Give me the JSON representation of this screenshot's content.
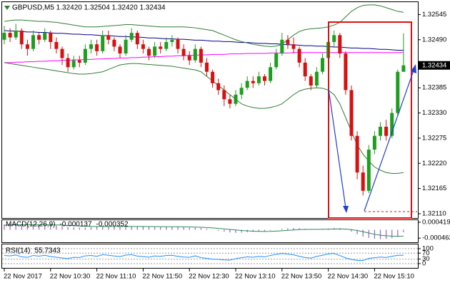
{
  "chart_data": [
    {
      "type": "candlestick",
      "title": "GBPUSD,M5  1.32420 1.32504 1.32420 1.32434",
      "categories": [
        "22 Nov 2017",
        null,
        null,
        null,
        null,
        null,
        null,
        null,
        "22 Nov 10:30",
        null,
        null,
        null,
        null,
        null,
        null,
        null,
        "22 Nov 11:10",
        null,
        null,
        null,
        null,
        null,
        null,
        null,
        "22 Nov 11:50",
        null,
        null,
        null,
        null,
        null,
        null,
        null,
        "22 Nov 12:30",
        null,
        null,
        null,
        null,
        null,
        null,
        null,
        "22 Nov 13:10",
        null,
        null,
        null,
        null,
        null,
        null,
        null,
        "22 Nov 13:50",
        null,
        null,
        null,
        null,
        null,
        null,
        null,
        "22 Nov 14:30",
        null,
        null,
        null,
        null,
        null,
        null,
        null,
        "22 Nov 15:10",
        null,
        null,
        null,
        null,
        null
      ],
      "open": [
        1.3249,
        1.32505,
        1.32495,
        1.3251,
        1.3248,
        1.3247,
        1.325,
        1.3249,
        1.32505,
        1.32485,
        1.3247,
        1.3245,
        1.3243,
        1.32445,
        1.3244,
        1.3247,
        1.3248,
        1.32465,
        1.325,
        1.3249,
        1.32475,
        1.3246,
        1.3249,
        1.32505,
        1.3248,
        1.3247,
        1.32455,
        1.32475,
        1.3247,
        1.32485,
        1.3249,
        1.3247,
        1.32455,
        1.32445,
        1.3247,
        1.3244,
        1.3242,
        1.32395,
        1.3238,
        1.3236,
        1.3235,
        1.3237,
        1.32385,
        1.324,
        1.32395,
        1.3241,
        1.324,
        1.3243,
        1.3246,
        1.3249,
        1.3248,
        1.3247,
        1.3244,
        1.3241,
        1.3239,
        1.3242,
        1.3245,
        1.32485,
        1.325,
        1.3246,
        1.3238,
        1.3228,
        1.322,
        1.3216,
        1.3225,
        1.3228,
        1.323,
        1.3228,
        1.3233,
        1.3242
      ],
      "high": [
        1.3252,
        1.32515,
        1.32525,
        1.32515,
        1.3249,
        1.3251,
        1.32505,
        1.32515,
        1.3251,
        1.32495,
        1.32475,
        1.3246,
        1.32455,
        1.32455,
        1.3248,
        1.3249,
        1.3249,
        1.3251,
        1.3251,
        1.32495,
        1.3248,
        1.325,
        1.32515,
        1.3251,
        1.3249,
        1.32475,
        1.32485,
        1.32485,
        1.32495,
        1.325,
        1.32495,
        1.3248,
        1.32465,
        1.3248,
        1.32475,
        1.3245,
        1.32425,
        1.32405,
        1.3239,
        1.3237,
        1.3238,
        1.32395,
        1.3241,
        1.3241,
        1.3242,
        1.32415,
        1.3244,
        1.3247,
        1.32505,
        1.325,
        1.32495,
        1.32475,
        1.3245,
        1.32415,
        1.3243,
        1.3246,
        1.32495,
        1.3251,
        1.32505,
        1.32465,
        1.3239,
        1.3229,
        1.32215,
        1.3226,
        1.3229,
        1.3231,
        1.32315,
        1.3234,
        1.32425,
        1.32504
      ],
      "low": [
        1.3248,
        1.32485,
        1.3249,
        1.3247,
        1.32455,
        1.32465,
        1.3248,
        1.32485,
        1.3247,
        1.3246,
        1.32435,
        1.3242,
        1.32425,
        1.3243,
        1.32435,
        1.3246,
        1.32455,
        1.3246,
        1.3248,
        1.32465,
        1.3245,
        1.32455,
        1.32485,
        1.3247,
        1.3246,
        1.32445,
        1.3245,
        1.3246,
        1.32465,
        1.32475,
        1.3246,
        1.32445,
        1.32435,
        1.3244,
        1.3243,
        1.3241,
        1.32385,
        1.3237,
        1.32345,
        1.3234,
        1.32345,
        1.3236,
        1.3238,
        1.32385,
        1.3239,
        1.3239,
        1.32395,
        1.32425,
        1.32455,
        1.3247,
        1.3246,
        1.3243,
        1.324,
        1.3238,
        1.32385,
        1.32415,
        1.32445,
        1.32475,
        1.3245,
        1.3237,
        1.3227,
        1.32185,
        1.3215,
        1.32155,
        1.3224,
        1.3227,
        1.3227,
        1.32275,
        1.32325,
        1.3242
      ],
      "close": [
        1.32505,
        1.32495,
        1.3251,
        1.3248,
        1.3247,
        1.325,
        1.3249,
        1.32505,
        1.32485,
        1.3247,
        1.3245,
        1.3243,
        1.32445,
        1.3244,
        1.3247,
        1.3248,
        1.32465,
        1.325,
        1.3249,
        1.32475,
        1.3246,
        1.3249,
        1.32505,
        1.3248,
        1.3247,
        1.32455,
        1.32475,
        1.3247,
        1.32485,
        1.3249,
        1.3247,
        1.32455,
        1.32445,
        1.3247,
        1.3244,
        1.3242,
        1.32395,
        1.3238,
        1.3236,
        1.3235,
        1.3237,
        1.32385,
        1.324,
        1.32395,
        1.3241,
        1.324,
        1.3243,
        1.3246,
        1.3249,
        1.3248,
        1.3247,
        1.3244,
        1.3241,
        1.3239,
        1.3242,
        1.3245,
        1.32485,
        1.325,
        1.3246,
        1.3238,
        1.3228,
        1.322,
        1.3216,
        1.3225,
        1.3228,
        1.323,
        1.3228,
        1.3233,
        1.3242,
        1.32434
      ],
      "up_color": "#1e9e1e",
      "down_color": "#d81010",
      "overlays": [
        {
          "color": "#00008b",
          "values": [
            1.3251,
            1.32509,
            1.32509,
            1.32508,
            1.32507,
            1.32507,
            1.32506,
            1.32506,
            1.32505,
            1.32504,
            1.32504,
            1.32503,
            1.32502,
            1.32502,
            1.32501,
            1.32501,
            1.325,
            1.32499,
            1.32499,
            1.32498,
            1.32497,
            1.32497,
            1.32496,
            1.32496,
            1.32495,
            1.32494,
            1.32494,
            1.32493,
            1.32492,
            1.32492,
            1.32491,
            1.32491,
            1.3249,
            1.32489,
            1.32489,
            1.32488,
            1.32487,
            1.32487,
            1.32486,
            1.32486,
            1.32485,
            1.32484,
            1.32484,
            1.32483,
            1.32482,
            1.32482,
            1.32481,
            1.32481,
            1.3248,
            1.32479,
            1.32479,
            1.32478,
            1.32477,
            1.32477,
            1.32476,
            1.32476,
            1.32475,
            1.32474,
            1.32474,
            1.32473,
            1.32472,
            1.32472,
            1.32471,
            1.32471,
            1.3247,
            1.32469,
            1.32469,
            1.32468,
            1.32467,
            1.32467
          ]
        },
        {
          "color": "#ff00ff",
          "values": [
            1.3244,
            1.3244,
            1.32441,
            1.32441,
            1.32442,
            1.32442,
            1.32443,
            1.32443,
            1.32444,
            1.32444,
            1.32445,
            1.32445,
            1.32446,
            1.32446,
            1.32447,
            1.32447,
            1.32448,
            1.32448,
            1.32449,
            1.32449,
            1.3245,
            1.3245,
            1.32451,
            1.32451,
            1.32452,
            1.32452,
            1.32453,
            1.32453,
            1.32454,
            1.32454,
            1.32455,
            1.32455,
            1.32456,
            1.32456,
            1.32457,
            1.32457,
            1.32458,
            1.32458,
            1.32458,
            1.32459,
            1.32459,
            1.32459,
            1.3246,
            1.3246,
            1.3246,
            1.3246,
            1.32461,
            1.32461,
            1.32461,
            1.32461,
            1.32462,
            1.32462,
            1.32462,
            1.32462,
            1.32462,
            1.32462,
            1.32462,
            1.32462,
            1.32462,
            1.32462,
            1.32462,
            1.32462,
            1.32462,
            1.32462,
            1.32462,
            1.32462,
            1.32462,
            1.32462,
            1.32462,
            1.32462
          ]
        },
        {
          "color": "#2e7d32",
          "values": [
            1.3253,
            1.32532,
            1.32533,
            1.32533,
            1.32532,
            1.32531,
            1.3253,
            1.3253,
            1.32529,
            1.32528,
            1.32526,
            1.32524,
            1.32522,
            1.3252,
            1.32518,
            1.32518,
            1.32518,
            1.32519,
            1.3252,
            1.32521,
            1.32522,
            1.32523,
            1.32523,
            1.32522,
            1.32521,
            1.3252,
            1.32519,
            1.32518,
            1.32518,
            1.32518,
            1.32518,
            1.32518,
            1.32517,
            1.32516,
            1.32514,
            1.32512,
            1.3251,
            1.32505,
            1.325,
            1.32495,
            1.3249,
            1.32486,
            1.32483,
            1.3248,
            1.32478,
            1.32476,
            1.32475,
            1.32476,
            1.3248,
            1.3249,
            1.325,
            1.32508,
            1.32512,
            1.32514,
            1.32515,
            1.32516,
            1.32518,
            1.32522,
            1.32528,
            1.3254,
            1.32552,
            1.3256,
            1.32565,
            1.32566,
            1.32566,
            1.32564,
            1.3256,
            1.32556,
            1.32552,
            1.3255
          ]
        },
        {
          "color": "#2e7d32",
          "values": [
            1.3244,
            1.32438,
            1.32436,
            1.32434,
            1.32432,
            1.3243,
            1.32428,
            1.32426,
            1.32424,
            1.32422,
            1.3242,
            1.32418,
            1.32416,
            1.32415,
            1.32415,
            1.32416,
            1.32418,
            1.3242,
            1.32425,
            1.3243,
            1.32435,
            1.32437,
            1.32438,
            1.32438,
            1.32437,
            1.32436,
            1.32435,
            1.32434,
            1.32433,
            1.32432,
            1.3243,
            1.32428,
            1.32426,
            1.32424,
            1.3242,
            1.3241,
            1.324,
            1.3239,
            1.3238,
            1.3237,
            1.3236,
            1.3235,
            1.32345,
            1.32342,
            1.3234,
            1.3234,
            1.32342,
            1.32345,
            1.3235,
            1.3236,
            1.3237,
            1.32378,
            1.32382,
            1.32384,
            1.32385,
            1.32384,
            1.3238,
            1.3237,
            1.3235,
            1.3232,
            1.3229,
            1.3226,
            1.3224,
            1.32225,
            1.32212,
            1.32205,
            1.322,
            1.32198,
            1.32198,
            1.322
          ]
        }
      ],
      "ylim": [
        1.32099,
        1.32569
      ],
      "yticks": [
        1.32545,
        {
          "value": 1.3249,
          "label": "1.32490"
        },
        1.32385,
        {
          "value": 1.3233,
          "label": "1.32330"
        },
        1.32275,
        {
          "value": 1.3222,
          "label": "1.32220"
        },
        1.32165,
        {
          "value": 1.3211,
          "label": "1.32110"
        }
      ]
    },
    {
      "type": "macd",
      "title": "MACD(12,26,9)",
      "series": [
        {
          "color": "#9b6fd0",
          "values": [
            0.0003,
            0.00032,
            0.00033,
            0.00032,
            0.0003,
            0.00028,
            0.00027,
            0.00026,
            0.00025,
            0.00023,
            0.0002,
            0.00016,
            0.00013,
            0.00012,
            0.00013,
            0.00015,
            0.00017,
            0.00019,
            0.0002,
            0.00019,
            0.00018,
            0.00017,
            0.00018,
            0.00019,
            0.00018,
            0.00016,
            0.00015,
            0.00015,
            0.00016,
            0.00017,
            0.00016,
            0.00014,
            0.00012,
            0.00012,
            0.0001,
            6e-05,
            1e-05,
            -5e-05,
            -0.00011,
            -0.00015,
            -0.00017,
            -0.00016,
            -0.00014,
            -0.00012,
            -0.0001,
            -8e-05,
            -4e-05,
            1e-05,
            6e-05,
            9e-05,
            0.0001,
            9e-05,
            6e-05,
            3e-05,
            2e-05,
            4e-05,
            7e-05,
            9e-05,
            8e-05,
            1e-05,
            -0.0001,
            -0.00025,
            -0.00038,
            -0.00045,
            -0.0005,
            -0.00052,
            -0.0005,
            -0.00047,
            -0.0004,
            -0.000137
          ]
        },
        {
          "color": "#2e8b57",
          "values": [
            0.00025,
            0.00026,
            0.00027,
            0.00028,
            0.000285,
            0.000285,
            0.00028,
            0.000275,
            0.00027,
            0.000265,
            0.000255,
            0.00024,
            0.000225,
            0.00021,
            0.0002,
            0.00019,
            0.000185,
            0.000185,
            0.000185,
            0.000185,
            0.000185,
            0.000183,
            0.000182,
            0.000182,
            0.000182,
            0.00018,
            0.000176,
            0.000172,
            0.00017,
            0.000168,
            0.000166,
            0.000162,
            0.000156,
            0.00015,
            0.00014,
            0.000125,
            0.000105,
            8e-05,
            5e-05,
            2e-05,
            -1e-05,
            -4e-05,
            -6e-05,
            -8e-05,
            -9e-05,
            -9.5e-05,
            -9e-05,
            -7.5e-05,
            -5.5e-05,
            -3e-05,
            -1e-05,
            1e-05,
            2e-05,
            2.5e-05,
            2.5e-05,
            2.8e-05,
            3.5e-05,
            4.5e-05,
            5e-05,
            4e-05,
            1e-05,
            -4e-05,
            -0.00011,
            -0.00018,
            -0.00025,
            -0.0003,
            -0.00033,
            -0.00035,
            -0.00036,
            -0.000352
          ]
        }
      ],
      "ylim": [
        -0.000693,
        0.000534
      ],
      "yticks": [
        0.000419,
        -0.000463
      ]
    },
    {
      "type": "line",
      "title": "RSI(14)",
      "color": "#1e90ff",
      "values": [
        55,
        52,
        58,
        45,
        42,
        55,
        50,
        56,
        47,
        43,
        38,
        34,
        42,
        41,
        52,
        55,
        49,
        60,
        56,
        51,
        47,
        57,
        60,
        50,
        47,
        43,
        51,
        49,
        54,
        56,
        48,
        44,
        42,
        52,
        40,
        35,
        30,
        28,
        25,
        24,
        33,
        40,
        45,
        43,
        48,
        45,
        55,
        62,
        68,
        63,
        59,
        49,
        41,
        37,
        48,
        56,
        65,
        68,
        54,
        38,
        28,
        22,
        20,
        35,
        40,
        44,
        41,
        49,
        56,
        55.7343
      ],
      "ylim": [
        0,
        100
      ],
      "yticks": [
        100,
        70,
        30,
        0
      ],
      "grid": true
    }
  ]
}
